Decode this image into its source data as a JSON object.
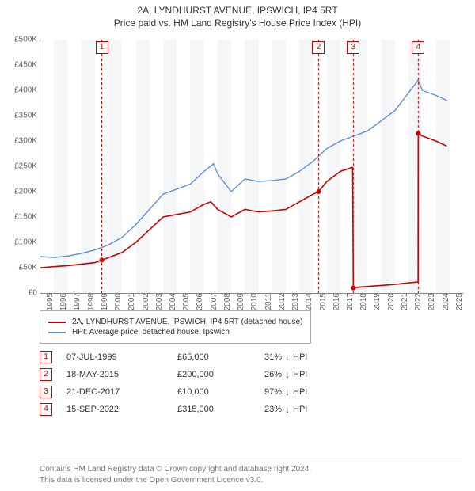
{
  "title_line1": "2A, LYNDHURST AVENUE, IPSWICH, IP4 5RT",
  "title_line2": "Price paid vs. HM Land Registry's House Price Index (HPI)",
  "chart": {
    "type": "line",
    "background_color": "#ffffff",
    "band_color": "#f5f6f8",
    "axis_color": "#888888",
    "yaxis": {
      "min": 0,
      "max": 500000,
      "step": 50000,
      "labels": [
        "£0",
        "£50K",
        "£100K",
        "£150K",
        "£200K",
        "£250K",
        "£300K",
        "£350K",
        "£400K",
        "£450K",
        "£500K"
      ],
      "label_fontsize": 10,
      "label_color": "#666666"
    },
    "xaxis": {
      "min": 1995,
      "max": 2026,
      "step": 1,
      "labels": [
        "1995",
        "1996",
        "1997",
        "1998",
        "1999",
        "2000",
        "2001",
        "2002",
        "2003",
        "2004",
        "2005",
        "2006",
        "2007",
        "2008",
        "2009",
        "2010",
        "2011",
        "2012",
        "2013",
        "2014",
        "2015",
        "2016",
        "2017",
        "2018",
        "2019",
        "2020",
        "2021",
        "2022",
        "2023",
        "2024",
        "2025"
      ],
      "label_fontsize": 10,
      "label_color": "#666666"
    },
    "series": [
      {
        "name": "property",
        "label": "2A, LYNDHURST AVENUE, IPSWICH, IP4 5RT (detached house)",
        "color": "#cc0000",
        "width": 1.6,
        "data": [
          [
            1995,
            50000
          ],
          [
            1996,
            52000
          ],
          [
            1997,
            54000
          ],
          [
            1998,
            57000
          ],
          [
            1999,
            60000
          ],
          [
            1999.5,
            65000
          ],
          [
            2000,
            70000
          ],
          [
            2001,
            80000
          ],
          [
            2002,
            100000
          ],
          [
            2003,
            125000
          ],
          [
            2004,
            150000
          ],
          [
            2005,
            155000
          ],
          [
            2006,
            160000
          ],
          [
            2007,
            175000
          ],
          [
            2007.5,
            180000
          ],
          [
            2008,
            165000
          ],
          [
            2009,
            150000
          ],
          [
            2010,
            165000
          ],
          [
            2011,
            160000
          ],
          [
            2012,
            162000
          ],
          [
            2013,
            165000
          ],
          [
            2014,
            180000
          ],
          [
            2015,
            195000
          ],
          [
            2015.4,
            200000
          ],
          [
            2016,
            220000
          ],
          [
            2017,
            240000
          ],
          [
            2017.9,
            248000
          ],
          [
            2017.95,
            10000
          ],
          [
            2018.5,
            12000
          ],
          [
            2019,
            13000
          ],
          [
            2020,
            15000
          ],
          [
            2021,
            17000
          ],
          [
            2022,
            20000
          ],
          [
            2022.7,
            22000
          ],
          [
            2022.71,
            315000
          ],
          [
            2023,
            310000
          ],
          [
            2024,
            300000
          ],
          [
            2024.8,
            290000
          ]
        ]
      },
      {
        "name": "hpi",
        "label": "HPI: Average price, detached house, Ipswich",
        "color": "#5b8fd6",
        "width": 1.4,
        "data": [
          [
            1995,
            72000
          ],
          [
            1996,
            70000
          ],
          [
            1997,
            73000
          ],
          [
            1998,
            78000
          ],
          [
            1999,
            85000
          ],
          [
            2000,
            95000
          ],
          [
            2001,
            110000
          ],
          [
            2002,
            135000
          ],
          [
            2003,
            165000
          ],
          [
            2004,
            195000
          ],
          [
            2005,
            205000
          ],
          [
            2006,
            215000
          ],
          [
            2007,
            240000
          ],
          [
            2007.7,
            255000
          ],
          [
            2008,
            235000
          ],
          [
            2009,
            200000
          ],
          [
            2010,
            225000
          ],
          [
            2011,
            220000
          ],
          [
            2012,
            222000
          ],
          [
            2013,
            225000
          ],
          [
            2014,
            240000
          ],
          [
            2015,
            260000
          ],
          [
            2016,
            285000
          ],
          [
            2017,
            300000
          ],
          [
            2018,
            310000
          ],
          [
            2019,
            320000
          ],
          [
            2020,
            340000
          ],
          [
            2021,
            360000
          ],
          [
            2022,
            395000
          ],
          [
            2022.7,
            420000
          ],
          [
            2023,
            400000
          ],
          [
            2024,
            390000
          ],
          [
            2024.8,
            380000
          ]
        ]
      }
    ],
    "sale_markers": [
      {
        "num": "1",
        "x": 1999.5,
        "y": 65000
      },
      {
        "num": "2",
        "x": 2015.4,
        "y": 200000
      },
      {
        "num": "3",
        "x": 2017.95,
        "y": 10000
      },
      {
        "num": "4",
        "x": 2022.71,
        "y": 315000
      }
    ],
    "marker_line_color": "#cc0000",
    "marker_line_dash": "3,3"
  },
  "legend_items": [
    {
      "color": "#cc0000",
      "label": "2A, LYNDHURST AVENUE, IPSWICH, IP4 5RT (detached house)"
    },
    {
      "color": "#5b8fd6",
      "label": "HPI: Average price, detached house, Ipswich"
    }
  ],
  "sales": [
    {
      "num": "1",
      "date": "07-JUL-1999",
      "price": "£65,000",
      "diff": "31%",
      "dir": "↓",
      "suffix": "HPI"
    },
    {
      "num": "2",
      "date": "18-MAY-2015",
      "price": "£200,000",
      "diff": "26%",
      "dir": "↓",
      "suffix": "HPI"
    },
    {
      "num": "3",
      "date": "21-DEC-2017",
      "price": "£10,000",
      "diff": "97%",
      "dir": "↓",
      "suffix": "HPI"
    },
    {
      "num": "4",
      "date": "15-SEP-2022",
      "price": "£315,000",
      "diff": "23%",
      "dir": "↓",
      "suffix": "HPI"
    }
  ],
  "footer_line1": "Contains HM Land Registry data © Crown copyright and database right 2024.",
  "footer_line2": "This data is licensed under the Open Government Licence v3.0."
}
